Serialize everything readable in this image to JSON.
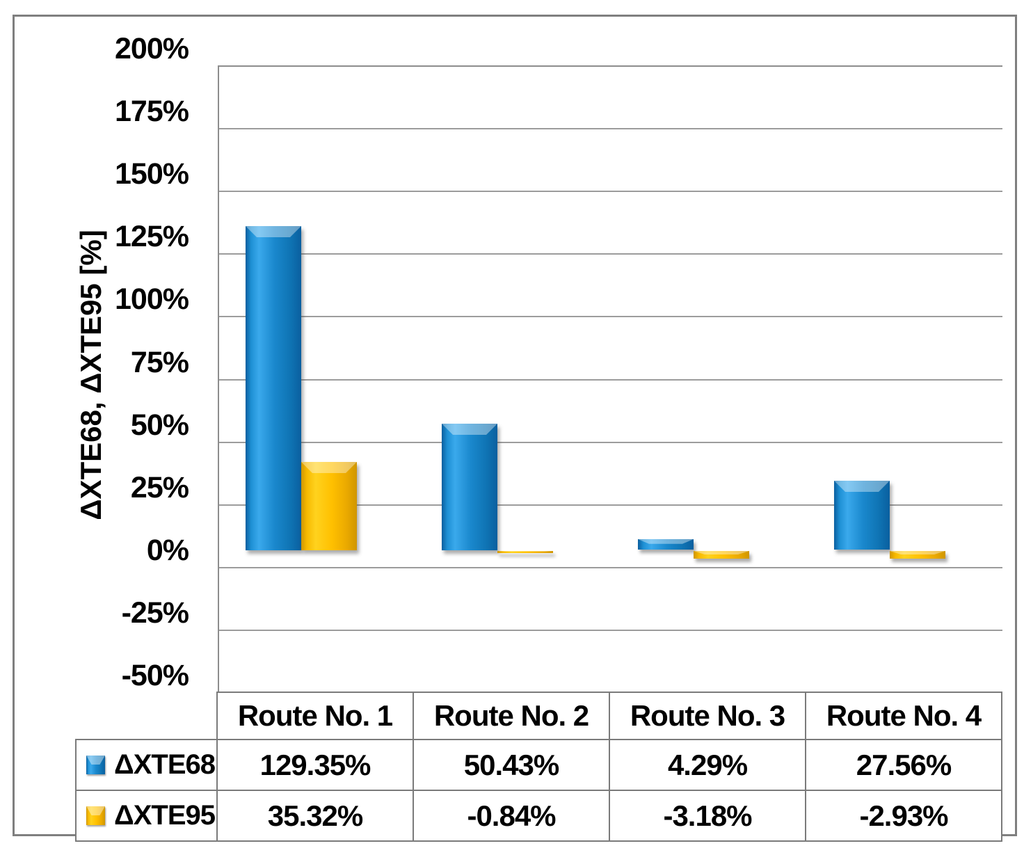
{
  "chart_data": {
    "type": "bar",
    "title": "",
    "categories": [
      "Route No. 1",
      "Route No. 2",
      "Route No. 3",
      "Route No. 4"
    ],
    "series": [
      {
        "name": "ΔXTE68",
        "color": "#1583C9",
        "values": [
          129.35,
          50.43,
          4.29,
          27.56
        ],
        "value_labels": [
          "129.35%",
          "50.43%",
          "4.29%",
          "27.56%"
        ]
      },
      {
        "name": "ΔXTE95",
        "color": "#FFC000",
        "values": [
          35.32,
          -0.84,
          -3.18,
          -2.93
        ],
        "value_labels": [
          "35.32%",
          "-0.84%",
          "-3.18%",
          "-2.93%"
        ]
      }
    ],
    "xlabel": "",
    "ylabel": "ΔXTE68, ΔXTE95 [%]",
    "ylim": [
      -50,
      200
    ],
    "ytick_step": 25,
    "ytick_labels": [
      "200%",
      "175%",
      "150%",
      "125%",
      "100%",
      "75%",
      "50%",
      "25%",
      "0%",
      "-25%",
      "-50%"
    ],
    "grid": true,
    "legend_position": "data-table-left",
    "data_table_shown": true
  },
  "colors": {
    "gridline": "#9c9c9c",
    "plot_border": "#8d8d8d",
    "table_border": "#7a7a7a",
    "outer_frame": "#7f7f7f",
    "text": "#000000"
  }
}
